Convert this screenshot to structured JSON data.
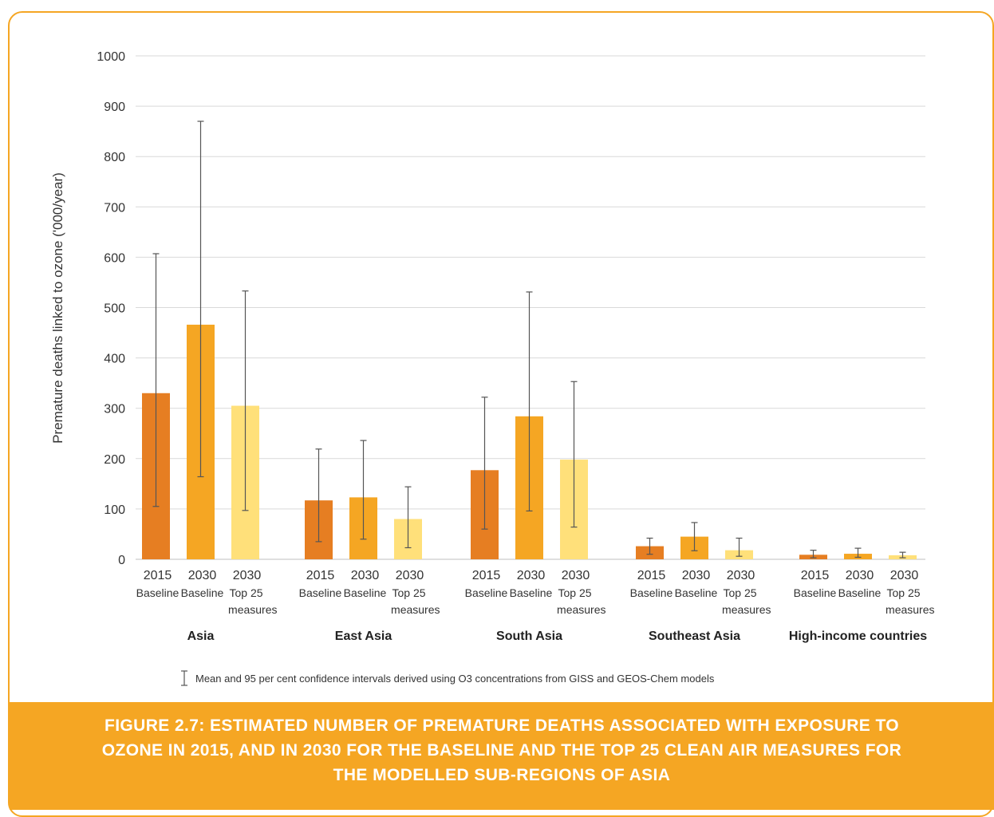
{
  "chart_data": {
    "type": "bar",
    "ylabel": "Premature deaths linked to ozone ('000/year)",
    "ylim": [
      0,
      1000
    ],
    "yticks": [
      0,
      100,
      200,
      300,
      400,
      500,
      600,
      700,
      800,
      900,
      1000
    ],
    "grid": true,
    "colors": {
      "2015 Baseline": "#e67e22",
      "2030 Baseline": "#f5a623",
      "2030 Top 25 measures": "#ffe07a",
      "gridline": "#d9d9d9",
      "errorbar": "#555555"
    },
    "bar_labels": [
      {
        "year": "2015",
        "line1": "Baseline",
        "line2": ""
      },
      {
        "year": "2030",
        "line1": "Baseline",
        "line2": ""
      },
      {
        "year": "2030",
        "line1": "Top 25",
        "line2": "measures"
      }
    ],
    "groups": [
      {
        "name": "Asia",
        "bars": [
          {
            "series": "2015 Baseline",
            "value": 330,
            "low": 105,
            "high": 607
          },
          {
            "series": "2030 Baseline",
            "value": 466,
            "low": 164,
            "high": 870
          },
          {
            "series": "2030 Top 25 measures",
            "value": 305,
            "low": 97,
            "high": 533
          }
        ]
      },
      {
        "name": "East Asia",
        "bars": [
          {
            "series": "2015 Baseline",
            "value": 117,
            "low": 35,
            "high": 219
          },
          {
            "series": "2030 Baseline",
            "value": 123,
            "low": 40,
            "high": 236
          },
          {
            "series": "2030 Top 25 measures",
            "value": 80,
            "low": 23,
            "high": 144
          }
        ]
      },
      {
        "name": "South Asia",
        "bars": [
          {
            "series": "2015 Baseline",
            "value": 177,
            "low": 60,
            "high": 322
          },
          {
            "series": "2030 Baseline",
            "value": 284,
            "low": 96,
            "high": 531
          },
          {
            "series": "2030 Top 25 measures",
            "value": 198,
            "low": 64,
            "high": 353
          }
        ]
      },
      {
        "name": "Southeast Asia",
        "bars": [
          {
            "series": "2015 Baseline",
            "value": 26,
            "low": 10,
            "high": 42
          },
          {
            "series": "2030 Baseline",
            "value": 45,
            "low": 17,
            "high": 73
          },
          {
            "series": "2030 Top 25 measures",
            "value": 18,
            "low": 6,
            "high": 42
          }
        ]
      },
      {
        "name": "High-income countries",
        "bars": [
          {
            "series": "2015 Baseline",
            "value": 9,
            "low": 3,
            "high": 18
          },
          {
            "series": "2030 Baseline",
            "value": 11,
            "low": 4,
            "high": 22
          },
          {
            "series": "2030 Top 25 measures",
            "value": 8,
            "low": 3,
            "high": 14
          }
        ]
      }
    ]
  },
  "footnote": "Mean and 95 per cent confidence intervals derived using O3 concentrations from GISS and GEOS-Chem models",
  "caption": "FIGURE 2.7: ESTIMATED NUMBER OF PREMATURE DEATHS ASSOCIATED WITH EXPOSURE TO OZONE IN 2015, AND IN 2030 FOR THE BASELINE AND THE TOP 25 CLEAN AIR MEASURES FOR THE MODELLED SUB-REGIONS OF ASIA"
}
